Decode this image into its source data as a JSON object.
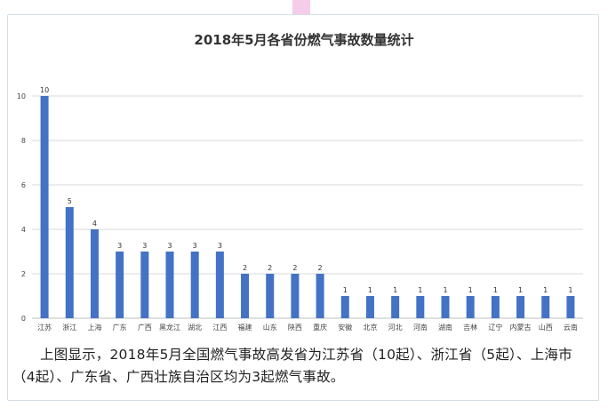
{
  "chart_data": {
    "type": "bar",
    "title": "2018年5月各省份燃气事故数量统计",
    "xlabel": "",
    "ylabel": "",
    "ylim": [
      0,
      10
    ],
    "yticks": [
      0,
      2,
      4,
      6,
      8,
      10
    ],
    "grid": true,
    "color": "#4472c4",
    "categories": [
      "江苏",
      "浙江",
      "上海",
      "广东",
      "广西",
      "黑龙江",
      "湖北",
      "江西",
      "福建",
      "山东",
      "陕西",
      "重庆",
      "安徽",
      "北京",
      "河北",
      "河南",
      "湖南",
      "吉林",
      "辽宁",
      "内蒙古",
      "山西",
      "云南"
    ],
    "values": [
      10,
      5,
      4,
      3,
      3,
      3,
      3,
      3,
      2,
      2,
      2,
      2,
      1,
      1,
      1,
      1,
      1,
      1,
      1,
      1,
      1,
      1
    ]
  },
  "caption": "上图显示，2018年5月全国燃气事故高发省为江苏省（10起）、浙江省（5起）、上海市（4起）、广东省、广西壮族自治区均为3起燃气事故。"
}
